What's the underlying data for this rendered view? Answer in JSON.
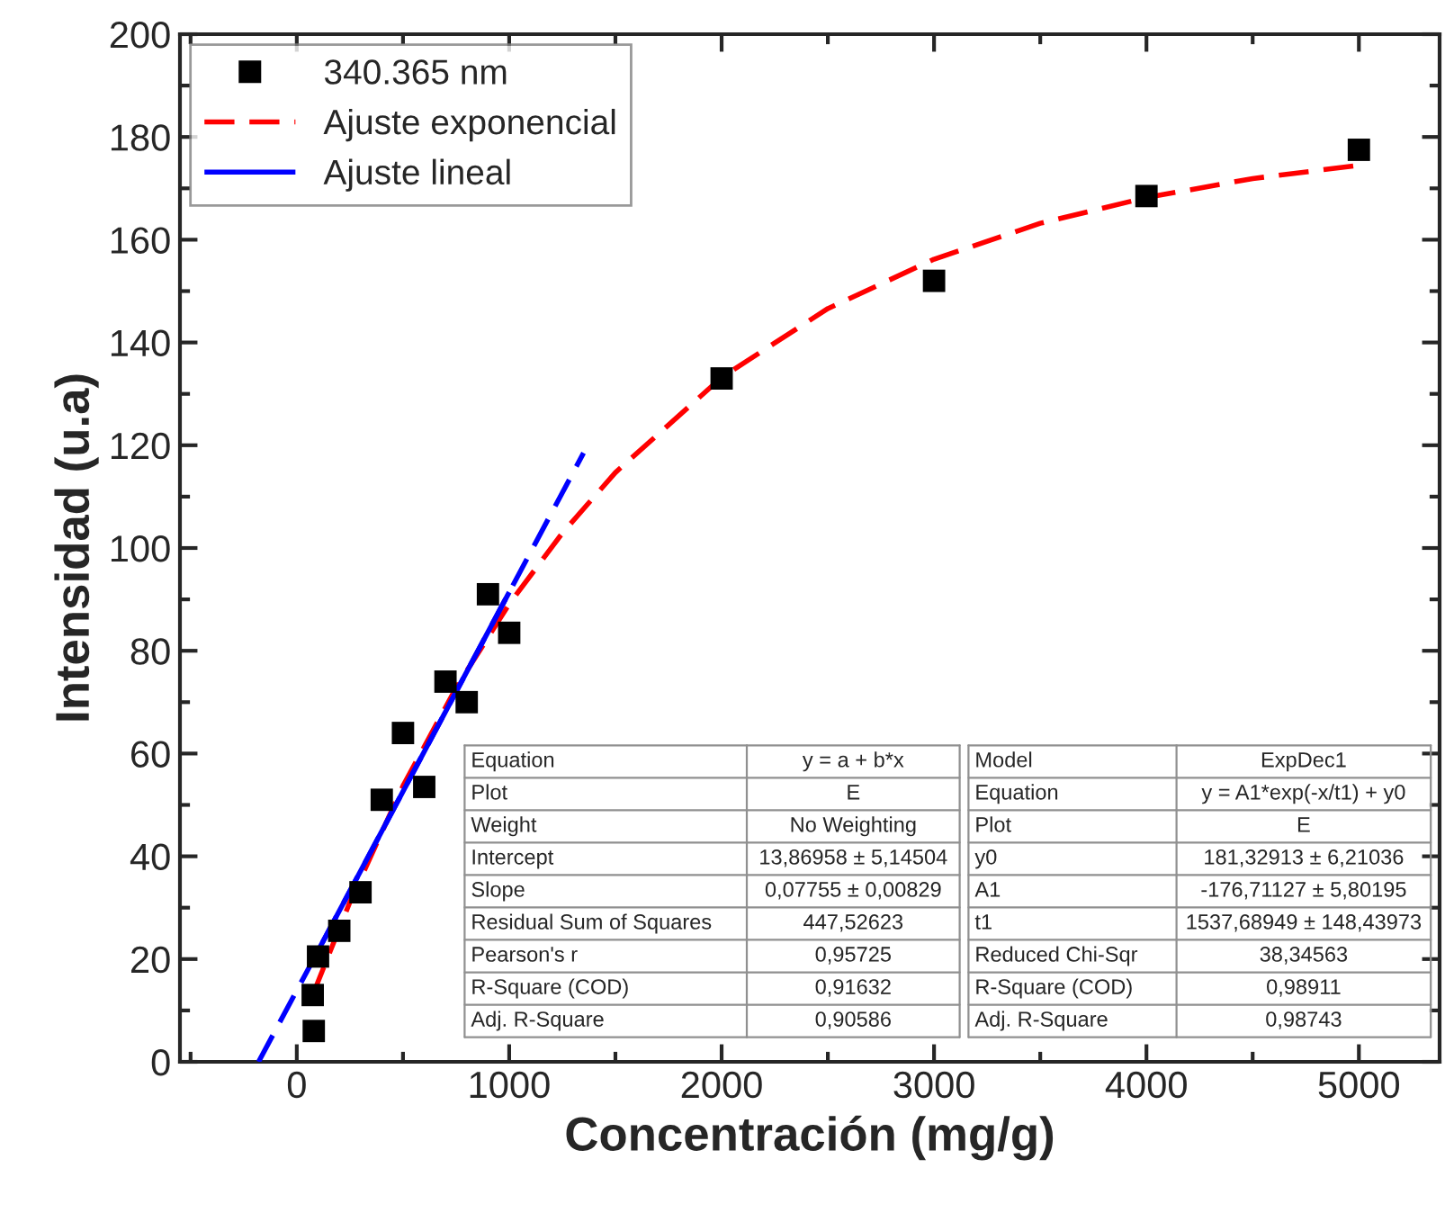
{
  "chart_data": {
    "type": "scatter",
    "xlabel": "Concentración (mg/g)",
    "ylabel": "Intensidad (u.a)",
    "xlim": [
      -550,
      5380
    ],
    "ylim": [
      0,
      200
    ],
    "xticks": [
      0,
      1000,
      2000,
      3000,
      4000,
      5000
    ],
    "yticks": [
      0,
      20,
      40,
      60,
      80,
      100,
      120,
      140,
      160,
      180,
      200
    ],
    "grid": false,
    "legend": "top left",
    "series": [
      {
        "name": "340.365 nm",
        "marker": "square",
        "color": "#000000",
        "x": [
          75,
          80,
          100,
          200,
          300,
          400,
          500,
          600,
          700,
          800,
          900,
          1000,
          2000,
          3000,
          4000,
          5000
        ],
        "values": [
          13,
          6,
          20.5,
          25.5,
          33,
          51,
          64,
          53.5,
          74,
          70,
          91,
          83.5,
          133,
          152,
          168.5,
          177.5
        ]
      },
      {
        "name": "Ajuste exponencial",
        "type": "line",
        "line_style": "dashed",
        "color": "#ff0000",
        "x": [
          75,
          250,
          500,
          750,
          1000,
          1250,
          1500,
          2000,
          2500,
          3000,
          3500,
          4000,
          4500,
          5000
        ],
        "values": [
          13.0,
          31.1,
          53.7,
          72.8,
          89.1,
          102.9,
          114.7,
          133.2,
          146.6,
          156.2,
          163.2,
          168.2,
          171.9,
          174.5
        ]
      },
      {
        "type": "line",
        "line_style": "dashed",
        "color": "#0000ff",
        "x": [
          -180,
          100,
          1000,
          1350
        ],
        "values": [
          0,
          21.6,
          91.4,
          118.5
        ]
      },
      {
        "name": "Ajuste lineal",
        "type": "line",
        "line_style": "solid",
        "color": "#0000ff",
        "x": [
          100,
          1000
        ],
        "values": [
          21.6,
          91.4
        ]
      }
    ],
    "annotations": [
      "Equation",
      "y = a + b*x",
      "Plot",
      "E",
      "Weight",
      "No Weighting",
      "Intercept",
      "13,86958 ± 5,14504",
      "Slope",
      "0,07755 ± 0,00829",
      "Residual Sum of Squares",
      "447,52623",
      "Pearson's r",
      "0,95725",
      "R-Square (COD)",
      "0,91632",
      "Adj. R-Square",
      "0,90586",
      "Model",
      "ExpDec1",
      "Equation",
      "y = A1*exp(-x/t1) + y0",
      "Plot",
      "E",
      "y0",
      "181,32913 ± 6,21036",
      "A1",
      "-176,71127 ± 5,80195",
      "t1",
      "1537,68949 ± 148,43973",
      "Reduced Chi-Sqr",
      "38,34563",
      "R-Square (COD)",
      "0,98911",
      "Adj. R-Square",
      "0,98743"
    ]
  }
}
